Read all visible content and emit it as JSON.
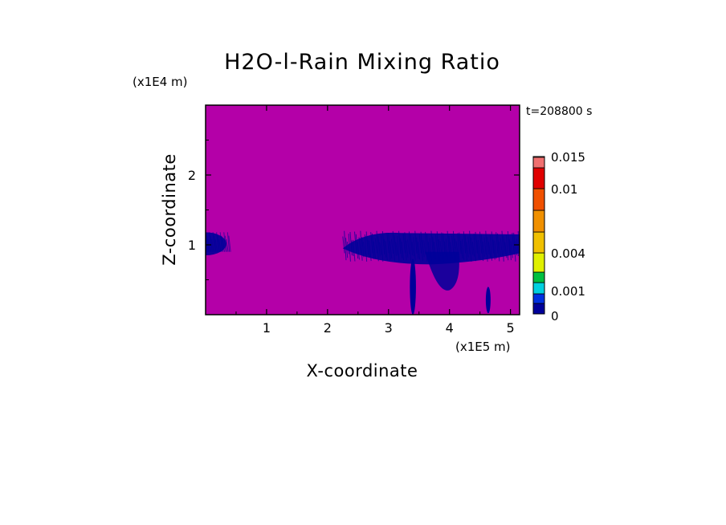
{
  "chart_data": {
    "type": "heatmap",
    "title": "H2O-l-Rain Mixing Ratio",
    "xlabel": "X-coordinate",
    "ylabel": "Z-coordinate",
    "x_scale_label": "(x1E5 m)",
    "y_scale_label": "(x1E4 m)",
    "time_label": "t=208800 s",
    "xlim": [
      0,
      5.15
    ],
    "ylim": [
      0,
      3.0
    ],
    "x_ticks": [
      1,
      2,
      3,
      4,
      5
    ],
    "y_ticks": [
      1,
      2
    ],
    "colorbar": {
      "levels": [
        0,
        0.0005,
        0.001,
        0.002,
        0.003,
        0.004,
        0.006,
        0.008,
        0.01,
        0.012,
        0.014,
        0.015
      ],
      "colors": [
        "#00009a",
        "#0030e0",
        "#00d0e0",
        "#00c040",
        "#e0f000",
        "#f0c000",
        "#f09000",
        "#f05000",
        "#e00000",
        "#f07070",
        "#f0b0b0"
      ],
      "tick_labels": [
        "0",
        "0.001",
        "0.004",
        "0.01",
        "0.015"
      ],
      "tick_values": [
        0,
        0.001,
        0.004,
        0.01,
        0.015
      ]
    },
    "background_value": 0,
    "background_color": "#b400a8",
    "rain_color": "#00009a",
    "rain_regions": [
      {
        "x_range": [
          0.0,
          0.4
        ],
        "z_range": [
          0.85,
          1.18
        ],
        "description": "left edge anvil"
      },
      {
        "x_range": [
          2.25,
          5.15
        ],
        "z_range": [
          0.75,
          1.2
        ],
        "description": "anvil spreading layer"
      },
      {
        "x_range": [
          3.35,
          3.45
        ],
        "z_range": [
          0.0,
          0.8
        ],
        "description": "rain shaft"
      },
      {
        "x_range": [
          3.6,
          4.15
        ],
        "z_range": [
          0.35,
          0.9
        ],
        "description": "lower precipitation blob"
      },
      {
        "x_range": [
          4.6,
          4.67
        ],
        "z_range": [
          0.02,
          0.4
        ],
        "description": "secondary rain shaft"
      }
    ]
  }
}
